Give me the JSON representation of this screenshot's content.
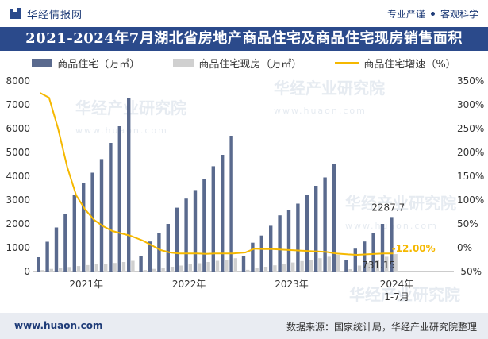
{
  "header": {
    "brand": "华经情报网",
    "tag1": "专业严谨",
    "tag2": "客观科学"
  },
  "title": "2021-2024年7月湖北省房地产商品住宅及商品住宅现房销售面积",
  "footer": {
    "url": "www.huaon.com",
    "source": "数据来源：国家统计局，华经产业研究院整理"
  },
  "watermark": {
    "text": "华经产业研究院",
    "sub": "www.huaon.com"
  },
  "colors": {
    "bar_main": "#5a6a8e",
    "bar_stock": "#d0d0d0",
    "line": "#f5b800",
    "title_bg": "#2b4a8b",
    "brand": "#1f3c78"
  },
  "chart_data": {
    "type": "bar+line",
    "legend": [
      "商品住宅（万㎡）",
      "商品住宅现房（万㎡）",
      "商品住宅增速（%）"
    ],
    "y_left": {
      "min": 0,
      "max": 8000,
      "ticks": [
        "0",
        "1000",
        "2000",
        "3000",
        "4000",
        "5000",
        "6000",
        "7000",
        "8000"
      ]
    },
    "y_right": {
      "min": -50,
      "max": 350,
      "ticks": [
        "-50%",
        "0%",
        "50%",
        "100%",
        "150%",
        "200%",
        "250%",
        "300%",
        "350%"
      ]
    },
    "x_group_labels": [
      "2021年",
      "2022年",
      "2023年",
      "2024年",
      "1-7月"
    ],
    "series": [
      {
        "name": "商品住宅（万㎡）",
        "values": [
          600,
          1250,
          1850,
          2420,
          3220,
          3720,
          4150,
          4720,
          5400,
          6100,
          7300,
          640,
          1260,
          1620,
          2000,
          2680,
          3060,
          3420,
          3880,
          4420,
          4900,
          5700,
          660,
          1210,
          1510,
          1920,
          2360,
          2580,
          2850,
          3220,
          3600,
          3950,
          4500,
          500,
          960,
          1260,
          1610,
          2000,
          2287.7
        ]
      },
      {
        "name": "商品住宅现房（万㎡）",
        "values": [
          60,
          110,
          150,
          190,
          230,
          270,
          300,
          330,
          360,
          400,
          450,
          60,
          110,
          150,
          200,
          250,
          300,
          350,
          400,
          450,
          500,
          560,
          70,
          140,
          200,
          260,
          320,
          380,
          440,
          500,
          560,
          620,
          700,
          100,
          250,
          380,
          500,
          620,
          731.15
        ]
      },
      {
        "name": "商品住宅增速（%）",
        "values": [
          325,
          315,
          250,
          170,
          110,
          80,
          58,
          45,
          35,
          30,
          25,
          15,
          5,
          -5,
          -10,
          -12,
          -12,
          -12,
          -13,
          -12,
          -12,
          -12,
          -10,
          -2,
          -3,
          -3,
          -4,
          -5,
          -6,
          -7,
          -8,
          -9,
          -12,
          -14,
          -15,
          -14,
          -13,
          -12,
          -12
        ]
      }
    ],
    "annotations": {
      "last_bar": "2287.7",
      "last_stock": "731.15",
      "last_rate": "-12.00%"
    }
  }
}
